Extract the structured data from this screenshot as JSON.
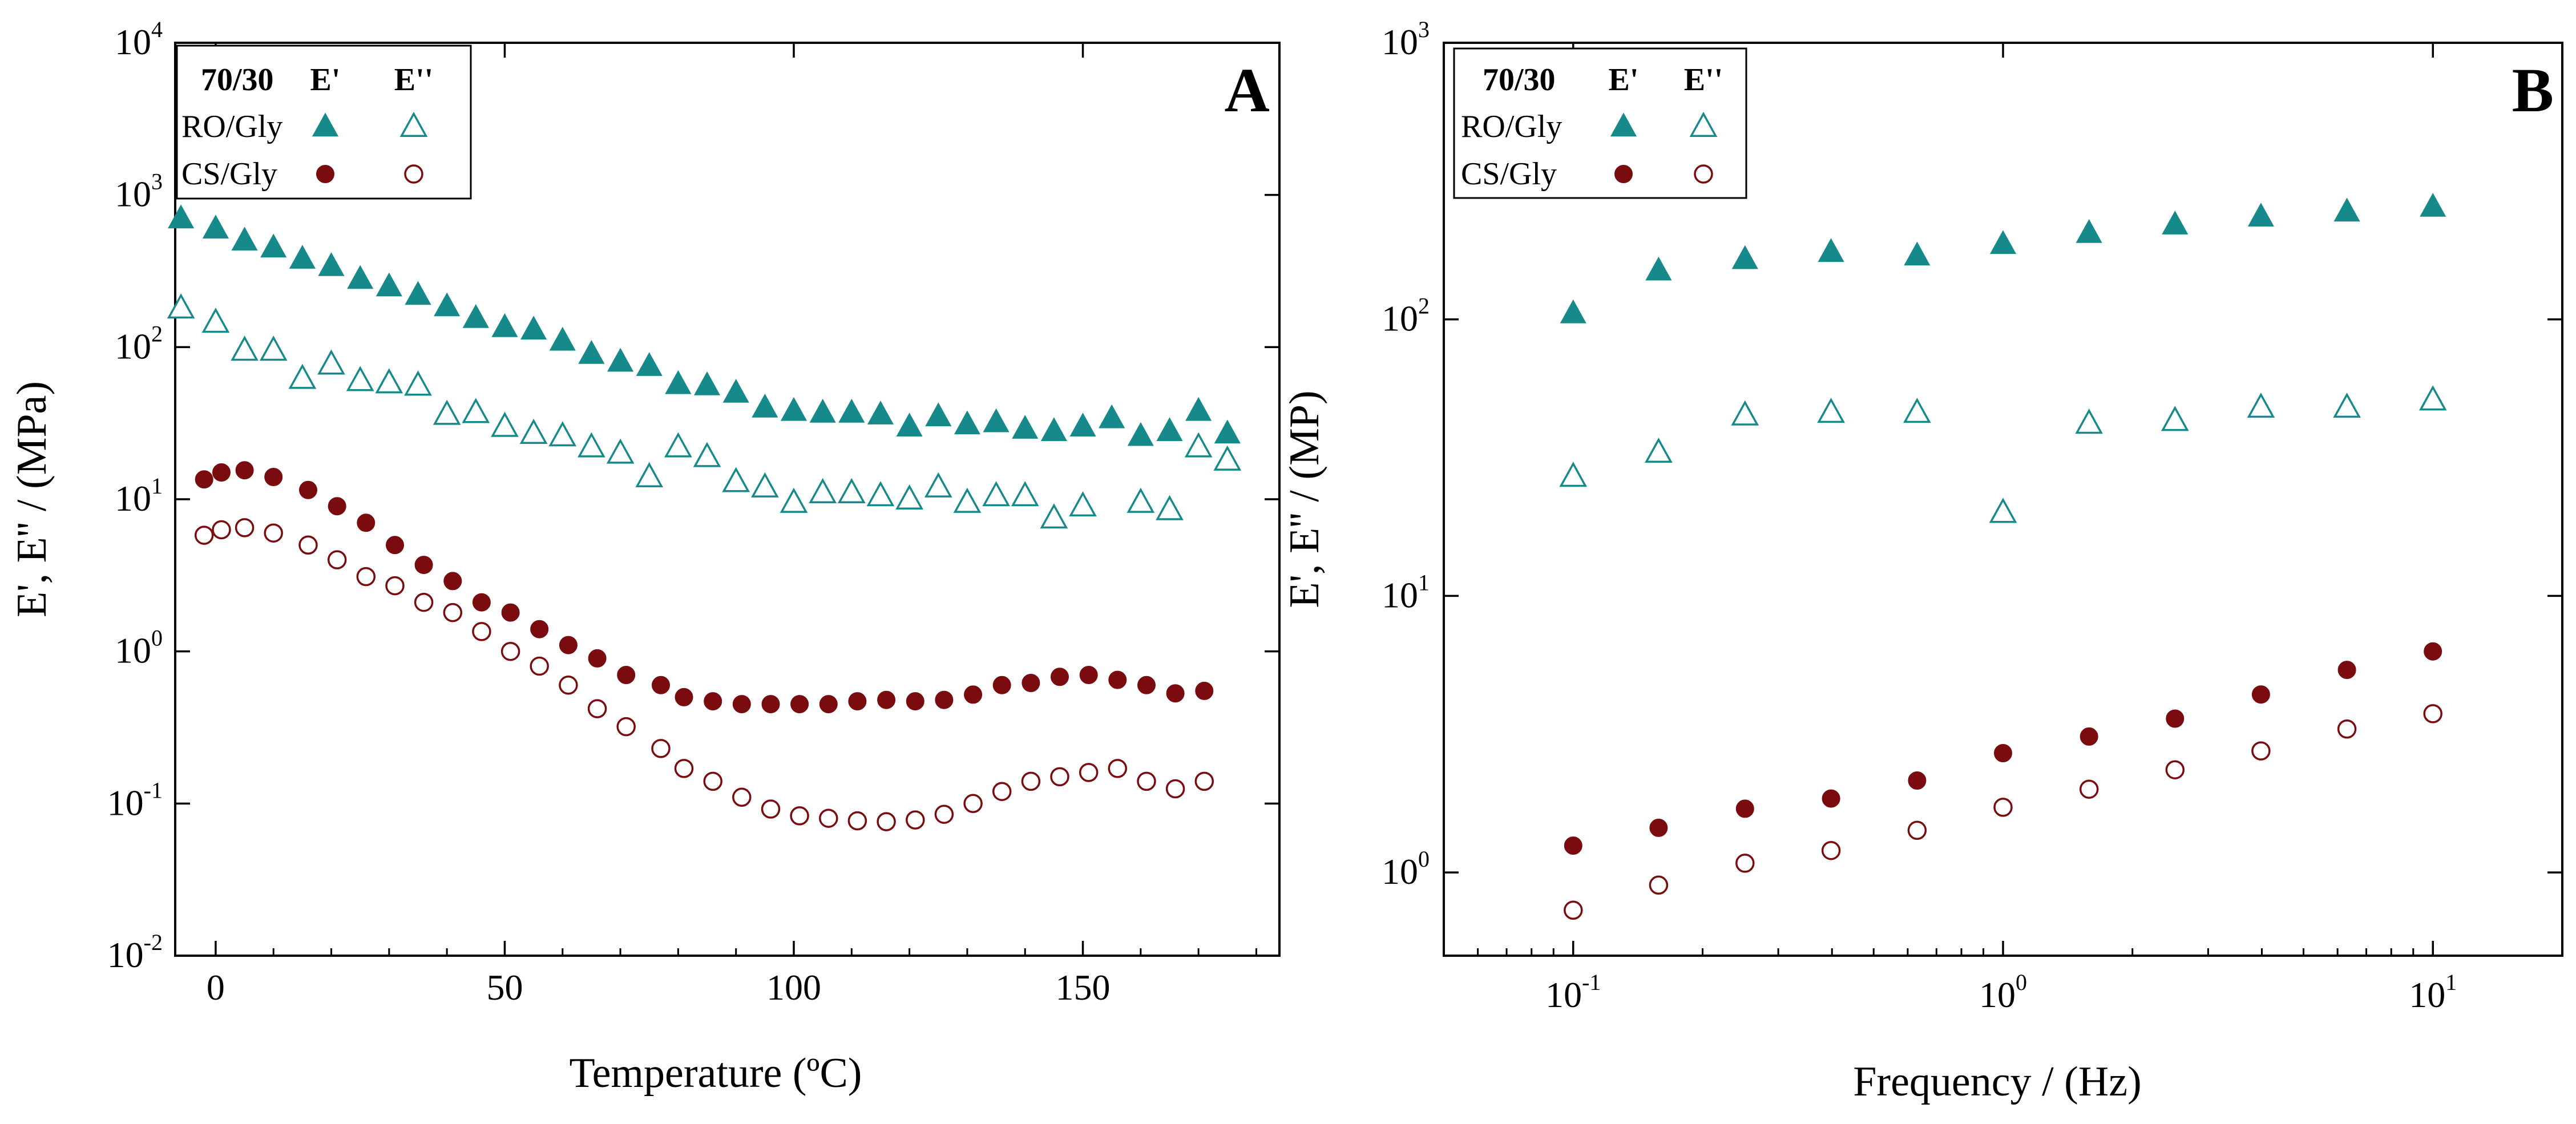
{
  "colors": {
    "teal": "#16898a",
    "maroon": "#7a0c10",
    "axis": "#000000"
  },
  "chart_data": [
    {
      "type": "scatter",
      "panel_label": "A",
      "title": "",
      "xlabel": "Temperature (ºC)",
      "ylabel": "E', E'' / (MPa)",
      "x_scale": "linear",
      "y_scale": "log",
      "xlim": [
        -7,
        184
      ],
      "ylim": [
        0.01,
        10000
      ],
      "x_ticks": [
        {
          "value": 0,
          "label": "0"
        },
        {
          "value": 50,
          "label": "50"
        },
        {
          "value": 100,
          "label": "100"
        },
        {
          "value": 150,
          "label": "150"
        }
      ],
      "y_ticks": [
        {
          "value": 0.01,
          "base": "10",
          "exp": "-2"
        },
        {
          "value": 0.1,
          "base": "10",
          "exp": "-1"
        },
        {
          "value": 1,
          "base": "10",
          "exp": "0"
        },
        {
          "value": 10,
          "base": "10",
          "exp": "1"
        },
        {
          "value": 100,
          "base": "10",
          "exp": "2"
        },
        {
          "value": 1000,
          "base": "10",
          "exp": "3"
        },
        {
          "value": 10000,
          "base": "10",
          "exp": "4"
        }
      ],
      "legend": {
        "placement": "top-left",
        "header": {
          "sample": "70/30",
          "col1": "E'",
          "col2": "E''"
        },
        "rows": [
          {
            "label": "RO/Gly",
            "marker": "triangle",
            "color": "teal"
          },
          {
            "label": "CS/Gly",
            "marker": "circle",
            "color": "maroon"
          }
        ]
      },
      "series": [
        {
          "name": "RO/Gly E'",
          "marker": "triangle",
          "filled": true,
          "color": "teal",
          "x": [
            -6,
            0,
            5,
            10,
            15,
            20,
            25,
            30,
            35,
            40,
            45,
            50,
            55,
            60,
            65,
            70,
            75,
            80,
            85,
            90,
            95,
            100,
            105,
            110,
            115,
            120,
            125,
            130,
            135,
            140,
            145,
            150,
            155,
            160,
            165,
            170,
            175
          ],
          "y": [
            700,
            600,
            500,
            450,
            380,
            340,
            280,
            250,
            220,
            185,
            155,
            135,
            130,
            110,
            90,
            80,
            75,
            57,
            56,
            50,
            40,
            38,
            37,
            37,
            36,
            30,
            35,
            31,
            32,
            29,
            28,
            30,
            34,
            26,
            28,
            38,
            27
          ]
        },
        {
          "name": "RO/Gly E''",
          "marker": "triangle",
          "filled": false,
          "color": "teal",
          "x": [
            -6,
            0,
            5,
            10,
            15,
            20,
            25,
            30,
            35,
            40,
            45,
            50,
            55,
            60,
            65,
            70,
            75,
            80,
            85,
            90,
            95,
            100,
            105,
            110,
            115,
            120,
            125,
            130,
            135,
            140,
            145,
            150,
            160,
            165,
            170,
            175
          ],
          "y": [
            180,
            145,
            95,
            95,
            62,
            77,
            60,
            58,
            56,
            36,
            37,
            30,
            27,
            26,
            22,
            20,
            14,
            22,
            19,
            13,
            12,
            9.5,
            11,
            11,
            10.5,
            10,
            12,
            9.5,
            10.5,
            10.5,
            7.5,
            9,
            9.5,
            8.5,
            22,
            18
          ]
        },
        {
          "name": "CS/Gly E'",
          "marker": "circle",
          "filled": true,
          "color": "maroon",
          "x": [
            -2,
            1,
            5,
            10,
            16,
            21,
            26,
            31,
            36,
            41,
            46,
            51,
            56,
            61,
            66,
            71,
            77,
            81,
            86,
            91,
            96,
            101,
            106,
            111,
            116,
            121,
            126,
            131,
            136,
            141,
            146,
            151,
            156,
            161,
            166,
            171
          ],
          "y": [
            13.5,
            15,
            15.5,
            14,
            11.5,
            9,
            7,
            5,
            3.7,
            2.9,
            2.1,
            1.8,
            1.4,
            1.1,
            0.9,
            0.7,
            0.6,
            0.5,
            0.47,
            0.45,
            0.45,
            0.45,
            0.45,
            0.47,
            0.48,
            0.47,
            0.48,
            0.52,
            0.6,
            0.62,
            0.68,
            0.7,
            0.65,
            0.6,
            0.53,
            0.55
          ]
        },
        {
          "name": "CS/Gly E''",
          "marker": "circle",
          "filled": false,
          "color": "maroon",
          "x": [
            -2,
            1,
            5,
            10,
            16,
            21,
            26,
            31,
            36,
            41,
            46,
            51,
            56,
            61,
            66,
            71,
            77,
            81,
            86,
            91,
            96,
            101,
            106,
            111,
            116,
            121,
            126,
            131,
            136,
            141,
            146,
            151,
            156,
            161,
            166,
            171
          ],
          "y": [
            5.8,
            6.3,
            6.5,
            6,
            5,
            4,
            3.1,
            2.7,
            2.1,
            1.8,
            1.35,
            1,
            0.8,
            0.6,
            0.42,
            0.32,
            0.23,
            0.17,
            0.14,
            0.11,
            0.092,
            0.083,
            0.08,
            0.077,
            0.076,
            0.078,
            0.085,
            0.1,
            0.12,
            0.14,
            0.15,
            0.16,
            0.17,
            0.14,
            0.125,
            0.14
          ]
        }
      ]
    },
    {
      "type": "scatter",
      "panel_label": "B",
      "title": "",
      "xlabel": "Frequency / (Hz)",
      "ylabel": "E', E'' / (MP)",
      "x_scale": "log",
      "y_scale": "log",
      "xlim": [
        0.05,
        20
      ],
      "ylim": [
        0.5,
        1000
      ],
      "x_ticks": [
        {
          "value": 0.1,
          "base": "10",
          "exp": "-1"
        },
        {
          "value": 1,
          "base": "10",
          "exp": "0"
        },
        {
          "value": 10,
          "base": "10",
          "exp": "1"
        }
      ],
      "y_ticks": [
        {
          "value": 1,
          "base": "10",
          "exp": "0"
        },
        {
          "value": 10,
          "base": "10",
          "exp": "1"
        },
        {
          "value": 100,
          "base": "10",
          "exp": "2"
        },
        {
          "value": 1000,
          "base": "10",
          "exp": "3"
        }
      ],
      "legend": {
        "placement": "top-left",
        "header": {
          "sample": "70/30",
          "col1": "E'",
          "col2": "E''"
        },
        "rows": [
          {
            "label": "RO/Gly",
            "marker": "triangle",
            "color": "teal"
          },
          {
            "label": "CS/Gly",
            "marker": "circle",
            "color": "maroon"
          }
        ]
      },
      "series": [
        {
          "name": "RO/Gly E'",
          "marker": "triangle",
          "filled": true,
          "color": "teal",
          "x": [
            0.1,
            0.158,
            0.251,
            0.398,
            0.631,
            1,
            1.585,
            2.512,
            3.981,
            6.31,
            10
          ],
          "y": [
            105,
            150,
            165,
            175,
            170,
            187,
            205,
            220,
            235,
            245,
            255
          ]
        },
        {
          "name": "RO/Gly E''",
          "marker": "triangle",
          "filled": false,
          "color": "teal",
          "x": [
            0.1,
            0.158,
            0.251,
            0.398,
            0.631,
            1,
            1.585,
            2.512,
            3.981,
            6.31,
            10
          ],
          "y": [
            27,
            33,
            45,
            46,
            46,
            20,
            42,
            43,
            48,
            48,
            51
          ]
        },
        {
          "name": "CS/Gly E'",
          "marker": "circle",
          "filled": true,
          "color": "maroon",
          "x": [
            0.1,
            0.158,
            0.251,
            0.398,
            0.631,
            1,
            1.585,
            2.512,
            3.981,
            6.31,
            10
          ],
          "y": [
            1.25,
            1.45,
            1.7,
            1.85,
            2.15,
            2.7,
            3.1,
            3.6,
            4.4,
            5.4,
            6.3
          ]
        },
        {
          "name": "CS/Gly E''",
          "marker": "circle",
          "filled": false,
          "color": "maroon",
          "x": [
            0.1,
            0.158,
            0.251,
            0.398,
            0.631,
            1,
            1.585,
            2.512,
            3.981,
            6.31,
            10
          ],
          "y": [
            0.73,
            0.9,
            1.08,
            1.2,
            1.42,
            1.72,
            2.0,
            2.35,
            2.75,
            3.3,
            3.75
          ]
        }
      ]
    }
  ]
}
